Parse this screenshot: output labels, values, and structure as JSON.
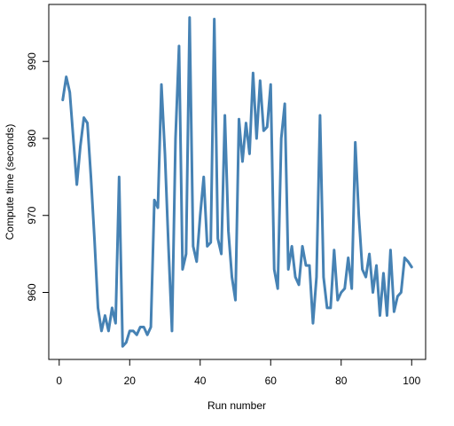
{
  "chart_data": {
    "type": "line",
    "x_label": "Run number",
    "y_label": "Compute time (seconds)",
    "x": [
      1,
      2,
      3,
      4,
      5,
      6,
      7,
      8,
      9,
      10,
      11,
      12,
      13,
      14,
      15,
      16,
      17,
      18,
      19,
      20,
      21,
      22,
      23,
      24,
      25,
      26,
      27,
      28,
      29,
      30,
      31,
      32,
      33,
      34,
      35,
      36,
      37,
      38,
      39,
      40,
      41,
      42,
      43,
      44,
      45,
      46,
      47,
      48,
      49,
      50,
      51,
      52,
      53,
      54,
      55,
      56,
      57,
      58,
      59,
      60,
      61,
      62,
      63,
      64,
      65,
      66,
      67,
      68,
      69,
      70,
      71,
      72,
      73,
      74,
      75,
      76,
      77,
      78,
      79,
      80,
      81,
      82,
      83,
      84,
      85,
      86,
      87,
      88,
      89,
      90,
      91,
      92,
      93,
      94,
      95,
      96,
      97,
      98,
      99,
      100
    ],
    "series": [
      {
        "name": "Compute time",
        "color": "#4682b4",
        "values": [
          985,
          988,
          986,
          980,
          974,
          979,
          982.7,
          982,
          975,
          967,
          958,
          955,
          957,
          955,
          958,
          956,
          975,
          953,
          953.5,
          955,
          955,
          954.5,
          955.5,
          955.5,
          954.5,
          955.5,
          972,
          971,
          987,
          978,
          966,
          955,
          980,
          992,
          963,
          965,
          995.7,
          966,
          964,
          970,
          975,
          966,
          966.5,
          995.5,
          967,
          965,
          983,
          968,
          962,
          959,
          982.5,
          977,
          982,
          978,
          988.5,
          980,
          987.5,
          981,
          981.5,
          987,
          963,
          960.5,
          980,
          984.5,
          963,
          966,
          962,
          961,
          966,
          963.5,
          963.5,
          956,
          962,
          983,
          962,
          958,
          958,
          965.5,
          959,
          960,
          960.5,
          964.5,
          960.5,
          979.5,
          970,
          963,
          962,
          965,
          960,
          963.5,
          957,
          962.5,
          957,
          965.5,
          957.5,
          959.5,
          960,
          964.5,
          964,
          963.3
        ]
      }
    ],
    "xlim": [
      -2.96,
      103.96
    ],
    "ylim": [
      951.3,
      997.4
    ],
    "xticks": [
      0,
      20,
      40,
      60,
      80,
      100
    ],
    "yticks": [
      960,
      970,
      980,
      990
    ]
  }
}
